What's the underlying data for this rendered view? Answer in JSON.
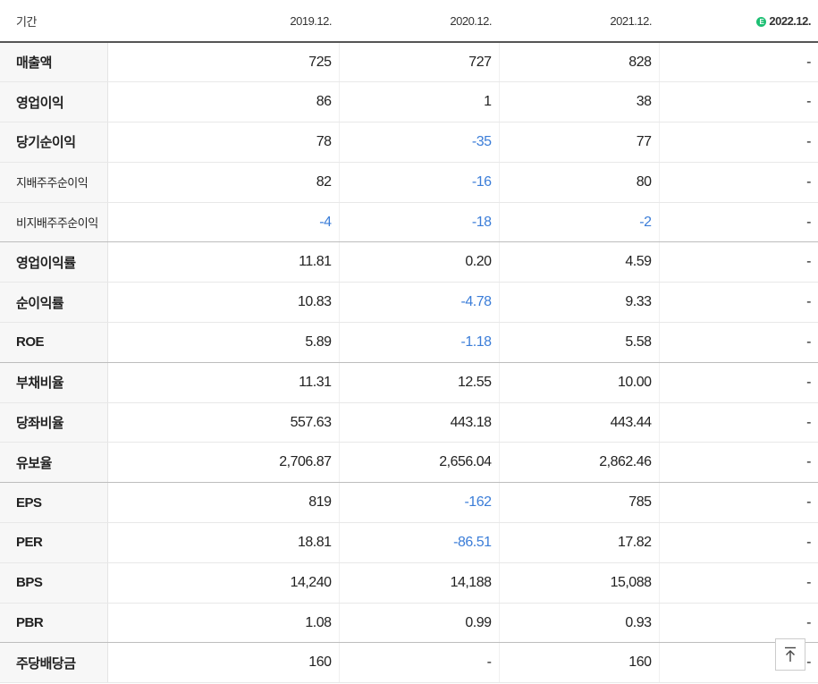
{
  "header": {
    "label": "기간",
    "periods": [
      "2019.12.",
      "2020.12.",
      "2021.12.",
      "2022.12."
    ],
    "estimate_badge": "E"
  },
  "rows": [
    {
      "label": "매출액",
      "values": [
        "725",
        "727",
        "828",
        "-"
      ]
    },
    {
      "label": "영업이익",
      "values": [
        "86",
        "1",
        "38",
        "-"
      ]
    },
    {
      "label": "당기순이익",
      "values": [
        "78",
        "-35",
        "77",
        "-"
      ]
    },
    {
      "label": "지배주주순이익",
      "values": [
        "82",
        "-16",
        "80",
        "-"
      ]
    },
    {
      "label": "비지배주주순이익",
      "values": [
        "-4",
        "-18",
        "-2",
        "-"
      ]
    },
    {
      "label": "영업이익률",
      "values": [
        "11.81",
        "0.20",
        "4.59",
        "-"
      ]
    },
    {
      "label": "순이익률",
      "values": [
        "10.83",
        "-4.78",
        "9.33",
        "-"
      ]
    },
    {
      "label": "ROE",
      "values": [
        "5.89",
        "-1.18",
        "5.58",
        "-"
      ]
    },
    {
      "label": "부채비율",
      "values": [
        "11.31",
        "12.55",
        "10.00",
        "-"
      ]
    },
    {
      "label": "당좌비율",
      "values": [
        "557.63",
        "443.18",
        "443.44",
        "-"
      ]
    },
    {
      "label": "유보율",
      "values": [
        "2,706.87",
        "2,656.04",
        "2,862.46",
        "-"
      ]
    },
    {
      "label": "EPS",
      "values": [
        "819",
        "-162",
        "785",
        "-"
      ]
    },
    {
      "label": "PER",
      "values": [
        "18.81",
        "-86.51",
        "17.82",
        "-"
      ]
    },
    {
      "label": "BPS",
      "values": [
        "14,240",
        "14,188",
        "15,088",
        "-"
      ]
    },
    {
      "label": "PBR",
      "values": [
        "1.08",
        "0.99",
        "0.93",
        "-"
      ]
    },
    {
      "label": "주당배당금",
      "values": [
        "160",
        "-",
        "160",
        "-"
      ]
    }
  ],
  "colors": {
    "negative": "#3b7dd8",
    "label_bg": "#f7f7f7",
    "estimate_badge": "#1dbf73"
  },
  "top_button_icon": "arrow-up-to-top-icon"
}
